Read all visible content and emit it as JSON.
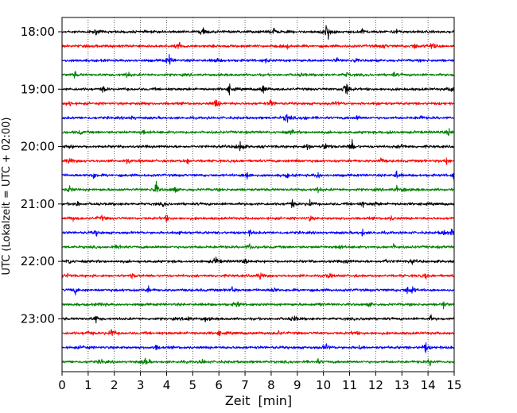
{
  "chart_data": {
    "type": "line",
    "subtype": "helicorder",
    "title": "",
    "xlabel": "Zeit  [min]",
    "ylabel": "UTC (Lokalzeit = UTC + 02:00)",
    "xlim": [
      0,
      15
    ],
    "x_ticks": [
      "0",
      "1",
      "2",
      "3",
      "4",
      "5",
      "6",
      "7",
      "8",
      "9",
      "10",
      "11",
      "12",
      "13",
      "14",
      "15"
    ],
    "y_tick_labels": [
      "18:00",
      "19:00",
      "20:00",
      "21:00",
      "22:00",
      "23:00"
    ],
    "grid": {
      "vertical": true,
      "style": "dotted"
    },
    "trace_colors": [
      "#000000",
      "#ff0000",
      "#0000ff",
      "#008000"
    ],
    "rows": [
      {
        "start": "18:00",
        "color": "#000000",
        "events": [
          [
            1.3,
            0.35
          ],
          [
            5.4,
            0.8
          ],
          [
            8.1,
            0.45
          ],
          [
            10.1,
            0.9
          ],
          [
            10.2,
            0.7
          ],
          [
            11.5,
            0.45
          ],
          [
            12.8,
            0.3
          ]
        ]
      },
      {
        "start": "18:15",
        "color": "#ff0000",
        "events": [
          [
            4.5,
            0.55
          ],
          [
            8.6,
            0.35
          ],
          [
            12.3,
            0.3
          ],
          [
            13.5,
            0.45
          ],
          [
            14.1,
            0.4
          ],
          [
            14.3,
            0.35
          ]
        ]
      },
      {
        "start": "18:30",
        "color": "#0000ff",
        "events": [
          [
            4.1,
            0.8
          ],
          [
            5.9,
            0.35
          ],
          [
            7.8,
            0.3
          ],
          [
            10.5,
            0.35
          ],
          [
            11.2,
            0.3
          ]
        ]
      },
      {
        "start": "18:45",
        "color": "#008000",
        "events": [
          [
            0.5,
            0.35
          ],
          [
            2.5,
            0.55
          ],
          [
            9.2,
            0.3
          ],
          [
            10.9,
            0.3
          ],
          [
            12.7,
            0.3
          ]
        ]
      },
      {
        "start": "19:00",
        "color": "#000000",
        "events": [
          [
            1.6,
            0.45
          ],
          [
            6.4,
            0.6
          ],
          [
            7.7,
            0.8
          ],
          [
            10.8,
            0.5
          ],
          [
            10.9,
            1.0
          ],
          [
            14.9,
            0.45
          ]
        ]
      },
      {
        "start": "19:15",
        "color": "#ff0000",
        "events": [
          [
            0.3,
            0.35
          ],
          [
            3.1,
            0.3
          ],
          [
            5.9,
            0.7
          ],
          [
            8.0,
            0.55
          ],
          [
            10.5,
            0.3
          ],
          [
            12.1,
            0.3
          ]
        ]
      },
      {
        "start": "19:30",
        "color": "#0000ff",
        "events": [
          [
            2.7,
            0.3
          ],
          [
            8.6,
            0.85
          ],
          [
            9.3,
            0.3
          ],
          [
            11.3,
            0.3
          ],
          [
            13.7,
            0.35
          ]
        ]
      },
      {
        "start": "19:45",
        "color": "#008000",
        "events": [
          [
            0.7,
            0.3
          ],
          [
            3.1,
            0.35
          ],
          [
            8.8,
            0.35
          ],
          [
            12.5,
            0.4
          ],
          [
            14.8,
            0.45
          ]
        ]
      },
      {
        "start": "20:00",
        "color": "#000000",
        "events": [
          [
            0.3,
            0.3
          ],
          [
            6.8,
            1.0
          ],
          [
            9.4,
            0.55
          ],
          [
            10.1,
            0.7
          ],
          [
            11.1,
            0.8
          ],
          [
            13.0,
            0.45
          ]
        ]
      },
      {
        "start": "20:15",
        "color": "#ff0000",
        "events": [
          [
            0.3,
            0.55
          ],
          [
            2.5,
            0.3
          ],
          [
            4.8,
            0.35
          ],
          [
            8.9,
            0.3
          ],
          [
            12.2,
            0.45
          ],
          [
            14.7,
            0.4
          ]
        ]
      },
      {
        "start": "20:30",
        "color": "#0000ff",
        "events": [
          [
            1.2,
            0.55
          ],
          [
            7.1,
            0.85
          ],
          [
            8.6,
            0.3
          ],
          [
            9.8,
            0.45
          ],
          [
            12.8,
            0.55
          ],
          [
            15.0,
            0.55
          ]
        ]
      },
      {
        "start": "20:45",
        "color": "#008000",
        "events": [
          [
            0.3,
            0.55
          ],
          [
            3.6,
            1.0
          ],
          [
            4.3,
            0.45
          ],
          [
            9.8,
            0.4
          ],
          [
            12.8,
            0.45
          ],
          [
            13.1,
            0.3
          ]
        ]
      },
      {
        "start": "21:00",
        "color": "#000000",
        "events": [
          [
            0.6,
            0.35
          ],
          [
            3.9,
            0.3
          ],
          [
            8.8,
            0.55
          ],
          [
            9.5,
            0.55
          ],
          [
            11.5,
            0.35
          ],
          [
            12.0,
            0.3
          ]
        ]
      },
      {
        "start": "21:15",
        "color": "#ff0000",
        "events": [
          [
            0.4,
            0.3
          ],
          [
            1.5,
            0.45
          ],
          [
            4.0,
            0.35
          ],
          [
            9.5,
            0.35
          ],
          [
            12.6,
            0.3
          ]
        ]
      },
      {
        "start": "21:30",
        "color": "#0000ff",
        "events": [
          [
            1.3,
            0.35
          ],
          [
            4.5,
            0.45
          ],
          [
            7.2,
            0.35
          ],
          [
            11.5,
            0.45
          ],
          [
            14.6,
            0.45
          ],
          [
            14.9,
            0.45
          ]
        ]
      },
      {
        "start": "21:45",
        "color": "#008000",
        "events": [
          [
            2.2,
            0.35
          ],
          [
            7.2,
            0.55
          ],
          [
            10.6,
            0.35
          ],
          [
            12.7,
            0.35
          ]
        ]
      },
      {
        "start": "22:00",
        "color": "#000000",
        "events": [
          [
            0.3,
            0.3
          ],
          [
            5.9,
            0.75
          ],
          [
            7.0,
            0.3
          ],
          [
            10.9,
            0.3
          ],
          [
            12.4,
            0.35
          ],
          [
            13.4,
            0.3
          ]
        ]
      },
      {
        "start": "22:15",
        "color": "#ff0000",
        "events": [
          [
            0.2,
            0.3
          ],
          [
            2.7,
            0.3
          ],
          [
            7.6,
            0.55
          ],
          [
            10.2,
            0.35
          ],
          [
            13.9,
            0.3
          ]
        ]
      },
      {
        "start": "22:30",
        "color": "#0000ff",
        "events": [
          [
            0.5,
            0.45
          ],
          [
            3.3,
            0.3
          ],
          [
            6.5,
            0.4
          ],
          [
            8.1,
            0.45
          ],
          [
            13.2,
            0.45
          ],
          [
            13.4,
            0.55
          ]
        ]
      },
      {
        "start": "22:45",
        "color": "#008000",
        "events": [
          [
            1.5,
            0.3
          ],
          [
            6.7,
            0.55
          ],
          [
            9.9,
            0.35
          ],
          [
            11.8,
            0.3
          ],
          [
            14.6,
            0.45
          ]
        ]
      },
      {
        "start": "23:00",
        "color": "#000000",
        "events": [
          [
            1.3,
            0.55
          ],
          [
            4.8,
            0.45
          ],
          [
            5.5,
            0.4
          ],
          [
            8.9,
            0.55
          ],
          [
            11.6,
            0.3
          ],
          [
            14.1,
            0.35
          ]
        ]
      },
      {
        "start": "23:15",
        "color": "#ff0000",
        "events": [
          [
            1.0,
            0.3
          ],
          [
            1.9,
            0.7
          ],
          [
            6.0,
            0.3
          ],
          [
            8.3,
            0.3
          ],
          [
            11.2,
            0.3
          ]
        ]
      },
      {
        "start": "23:30",
        "color": "#0000ff",
        "events": [
          [
            0.8,
            0.3
          ],
          [
            3.6,
            0.35
          ],
          [
            10.1,
            0.5
          ],
          [
            11.4,
            0.3
          ],
          [
            13.9,
            0.75
          ]
        ]
      },
      {
        "start": "23:45",
        "color": "#008000",
        "events": [
          [
            1.5,
            0.3
          ],
          [
            3.2,
            0.65
          ],
          [
            5.4,
            0.3
          ],
          [
            9.8,
            0.3
          ],
          [
            14.1,
            0.55
          ]
        ]
      }
    ]
  }
}
